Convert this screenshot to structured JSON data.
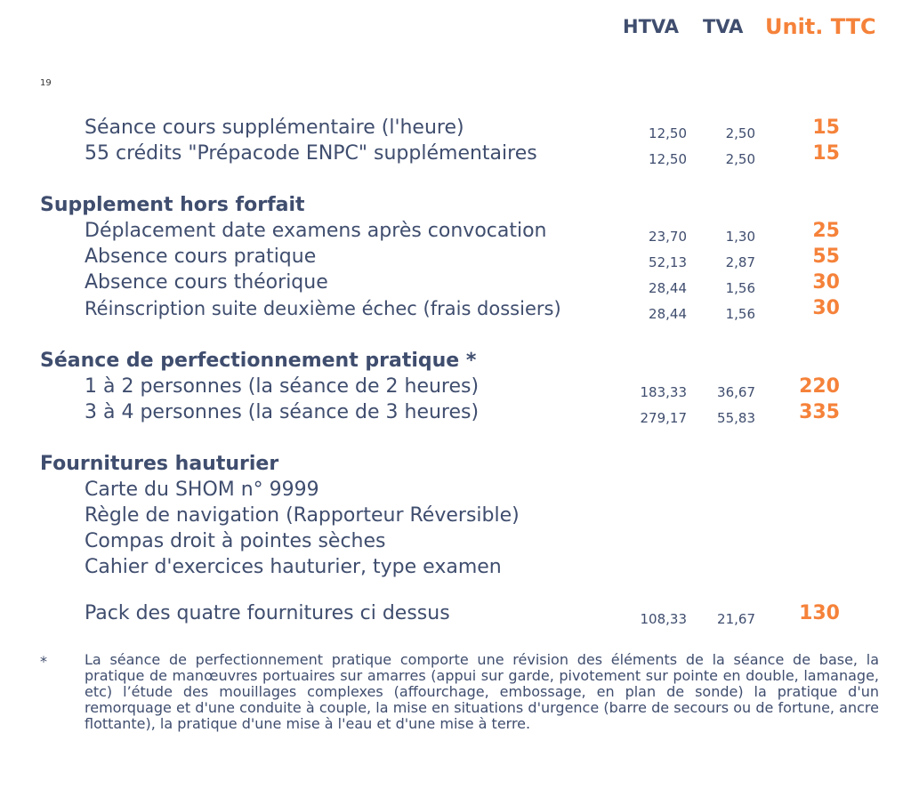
{
  "header": {
    "htva": "HTVA",
    "tva": "TVA",
    "ttc": "Unit. TTC"
  },
  "page_number": "19",
  "rows_top": [
    {
      "label": "Séance cours supplémentaire (l'heure)",
      "htva": "12,50",
      "tva": "2,50",
      "ttc": "15"
    },
    {
      "label": "55 crédits \"Prépacode ENPC\" supplémentaires",
      "htva": "12,50",
      "tva": "2,50",
      "ttc": "15"
    }
  ],
  "section_supplement": {
    "title": "Supplement hors forfait",
    "rows": [
      {
        "label": "Déplacement date examens après convocation",
        "htva": "23,70",
        "tva": "1,30",
        "ttc": "25"
      },
      {
        "label": "Absence cours pratique",
        "htva": "52,13",
        "tva": "2,87",
        "ttc": "55"
      },
      {
        "label": "Absence cours théorique",
        "htva": "28,44",
        "tva": "1,56",
        "ttc": "30"
      },
      {
        "label": "Réinscription suite deuxième échec (frais dossiers)",
        "htva": "28,44",
        "tva": "1,56",
        "ttc": "30"
      }
    ]
  },
  "section_perfectionnement": {
    "title": "Séance de perfectionnement pratique *",
    "rows": [
      {
        "label": "1 à 2 personnes (la séance de 2 heures)",
        "htva": "183,33",
        "tva": "36,67",
        "ttc": "220"
      },
      {
        "label": "3 à 4 personnes (la séance de 3 heures)",
        "htva": "279,17",
        "tva": "55,83",
        "ttc": "335"
      }
    ]
  },
  "section_fournitures": {
    "title": "Fournitures hauturier",
    "items": [
      "Carte du SHOM n° 9999",
      "Règle de navigation (Rapporteur Réversible)",
      "Compas droit à pointes sèches",
      "Cahier d'exercices hauturier, type examen"
    ],
    "pack": {
      "label": "Pack des quatre fournitures ci dessus",
      "htva": "108,33",
      "tva": "21,67",
      "ttc": "130"
    }
  },
  "footnote": {
    "marker": "*",
    "text": "La séance de perfectionnement pratique comporte une révision des éléments de la séance de base, la pratique de manœuvres portuaires sur amarres (appui sur garde, pivotement sur pointe en double, lamanage, etc) l’étude des mouillages complexes (affourchage, embossage, en plan de sonde) la pratique d'un remorquage et d'une conduite à couple, la mise en situations d'urgence (barre de secours ou de fortune, ancre flottante), la pratique d'une mise à l'eau et d'une  mise à terre."
  }
}
